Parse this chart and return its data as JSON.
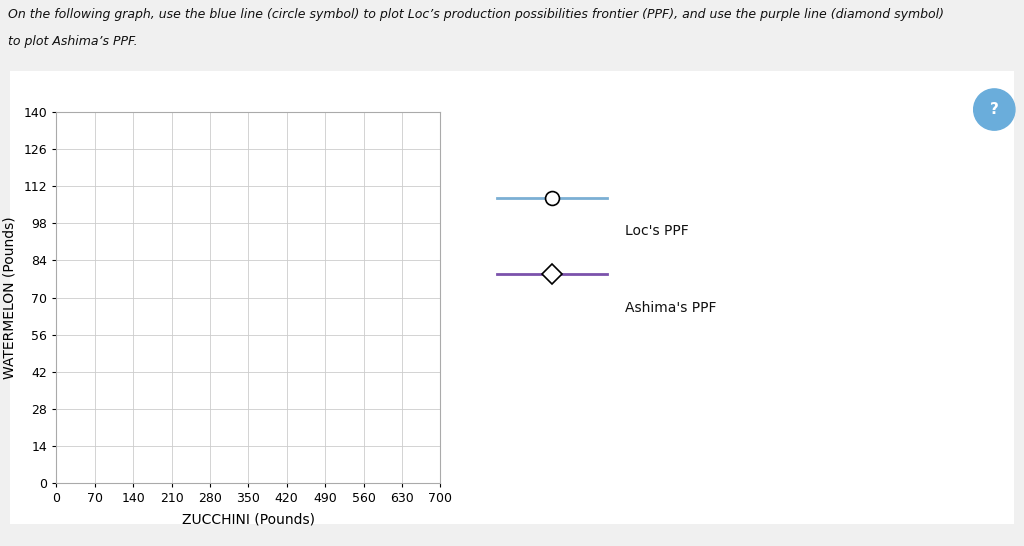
{
  "title": "",
  "xlabel": "ZUCCHINI (Pounds)",
  "ylabel": "WATERMELON (Pounds)",
  "xlim": [
    0,
    700
  ],
  "ylim": [
    0,
    140
  ],
  "xticks": [
    0,
    70,
    140,
    210,
    280,
    350,
    420,
    490,
    560,
    630,
    700
  ],
  "yticks": [
    0,
    14,
    28,
    42,
    56,
    70,
    84,
    98,
    112,
    126,
    140
  ],
  "loc_label": "Loc's PPF",
  "ashima_label": "Ashima's PPF",
  "loc_color": "#7BAFD4",
  "ashima_color": "#7B52AB",
  "figure_bg": "#f0f0f0",
  "panel_bg": "#ffffff",
  "plot_bg": "#ffffff",
  "grid_color": "#cccccc",
  "border_color": "#cccccc",
  "question_button_color": "#6AADDB",
  "header_text_line1": "On the following graph, use the blue line (circle symbol) to plot Loc’s production possibilities frontier (PPF), and use the purple line (diamond symbol)",
  "header_text_line2": "to plot Ashima’s PPF.",
  "header_fontsize": 9,
  "tick_fontsize": 9,
  "label_fontsize": 10,
  "legend_fontsize": 10
}
